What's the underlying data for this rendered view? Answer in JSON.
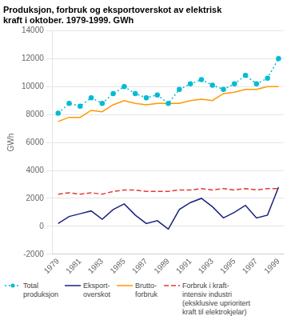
{
  "chart_data": {
    "type": "line",
    "title": "Produksjon, forbruk og eksportoverskot av elektrisk\nkraft i oktober. 1979-1999. GWh",
    "ylabel": "GWh",
    "x": [
      1979,
      1980,
      1981,
      1982,
      1983,
      1984,
      1985,
      1986,
      1987,
      1988,
      1989,
      1990,
      1991,
      1992,
      1993,
      1994,
      1995,
      1996,
      1997,
      1998,
      1999
    ],
    "series": [
      {
        "name": "Total\nproduksjon",
        "color": "#00bcd4",
        "marker": "circle",
        "line_style": "dotted",
        "values": [
          8100,
          8800,
          8600,
          9200,
          8800,
          9500,
          10000,
          9500,
          9200,
          9400,
          8800,
          9800,
          10200,
          10500,
          10100,
          9800,
          10200,
          10800,
          10200,
          10600,
          12000
        ]
      },
      {
        "name": "Eksport-\noverskot",
        "color": "#1a237e",
        "line_style": "solid",
        "values": [
          200,
          700,
          900,
          1100,
          500,
          1200,
          1600,
          800,
          200,
          400,
          -200,
          1200,
          1700,
          2000,
          1400,
          600,
          1000,
          1500,
          600,
          800,
          2800
        ]
      },
      {
        "name": "Brutto-\nforbruk",
        "color": "#ff9800",
        "line_style": "solid",
        "values": [
          7500,
          7800,
          7800,
          8300,
          8200,
          8700,
          9000,
          8800,
          8700,
          8800,
          8800,
          8800,
          9000,
          9100,
          9000,
          9500,
          9600,
          9800,
          9800,
          10000,
          10000
        ]
      },
      {
        "name": "Forbruk i kraft-\nintensiv industri\n(eksklusive uprioritert\nkraft til elektrokjelar)",
        "color": "#e53935",
        "line_style": "dashed",
        "values": [
          2300,
          2400,
          2300,
          2400,
          2300,
          2500,
          2600,
          2600,
          2500,
          2500,
          2500,
          2600,
          2600,
          2700,
          2600,
          2700,
          2600,
          2700,
          2600,
          2700,
          2700
        ]
      }
    ],
    "xlim": [
      1978.5,
      1999.5
    ],
    "xticks": [
      1979,
      1981,
      1983,
      1985,
      1987,
      1989,
      1991,
      1993,
      1995,
      1997,
      1999
    ],
    "ylim": [
      -2000,
      14000
    ],
    "yticks": [
      -2000,
      0,
      2000,
      4000,
      6000,
      8000,
      10000,
      12000,
      14000
    ],
    "grid": "y",
    "legend": "bottom"
  }
}
